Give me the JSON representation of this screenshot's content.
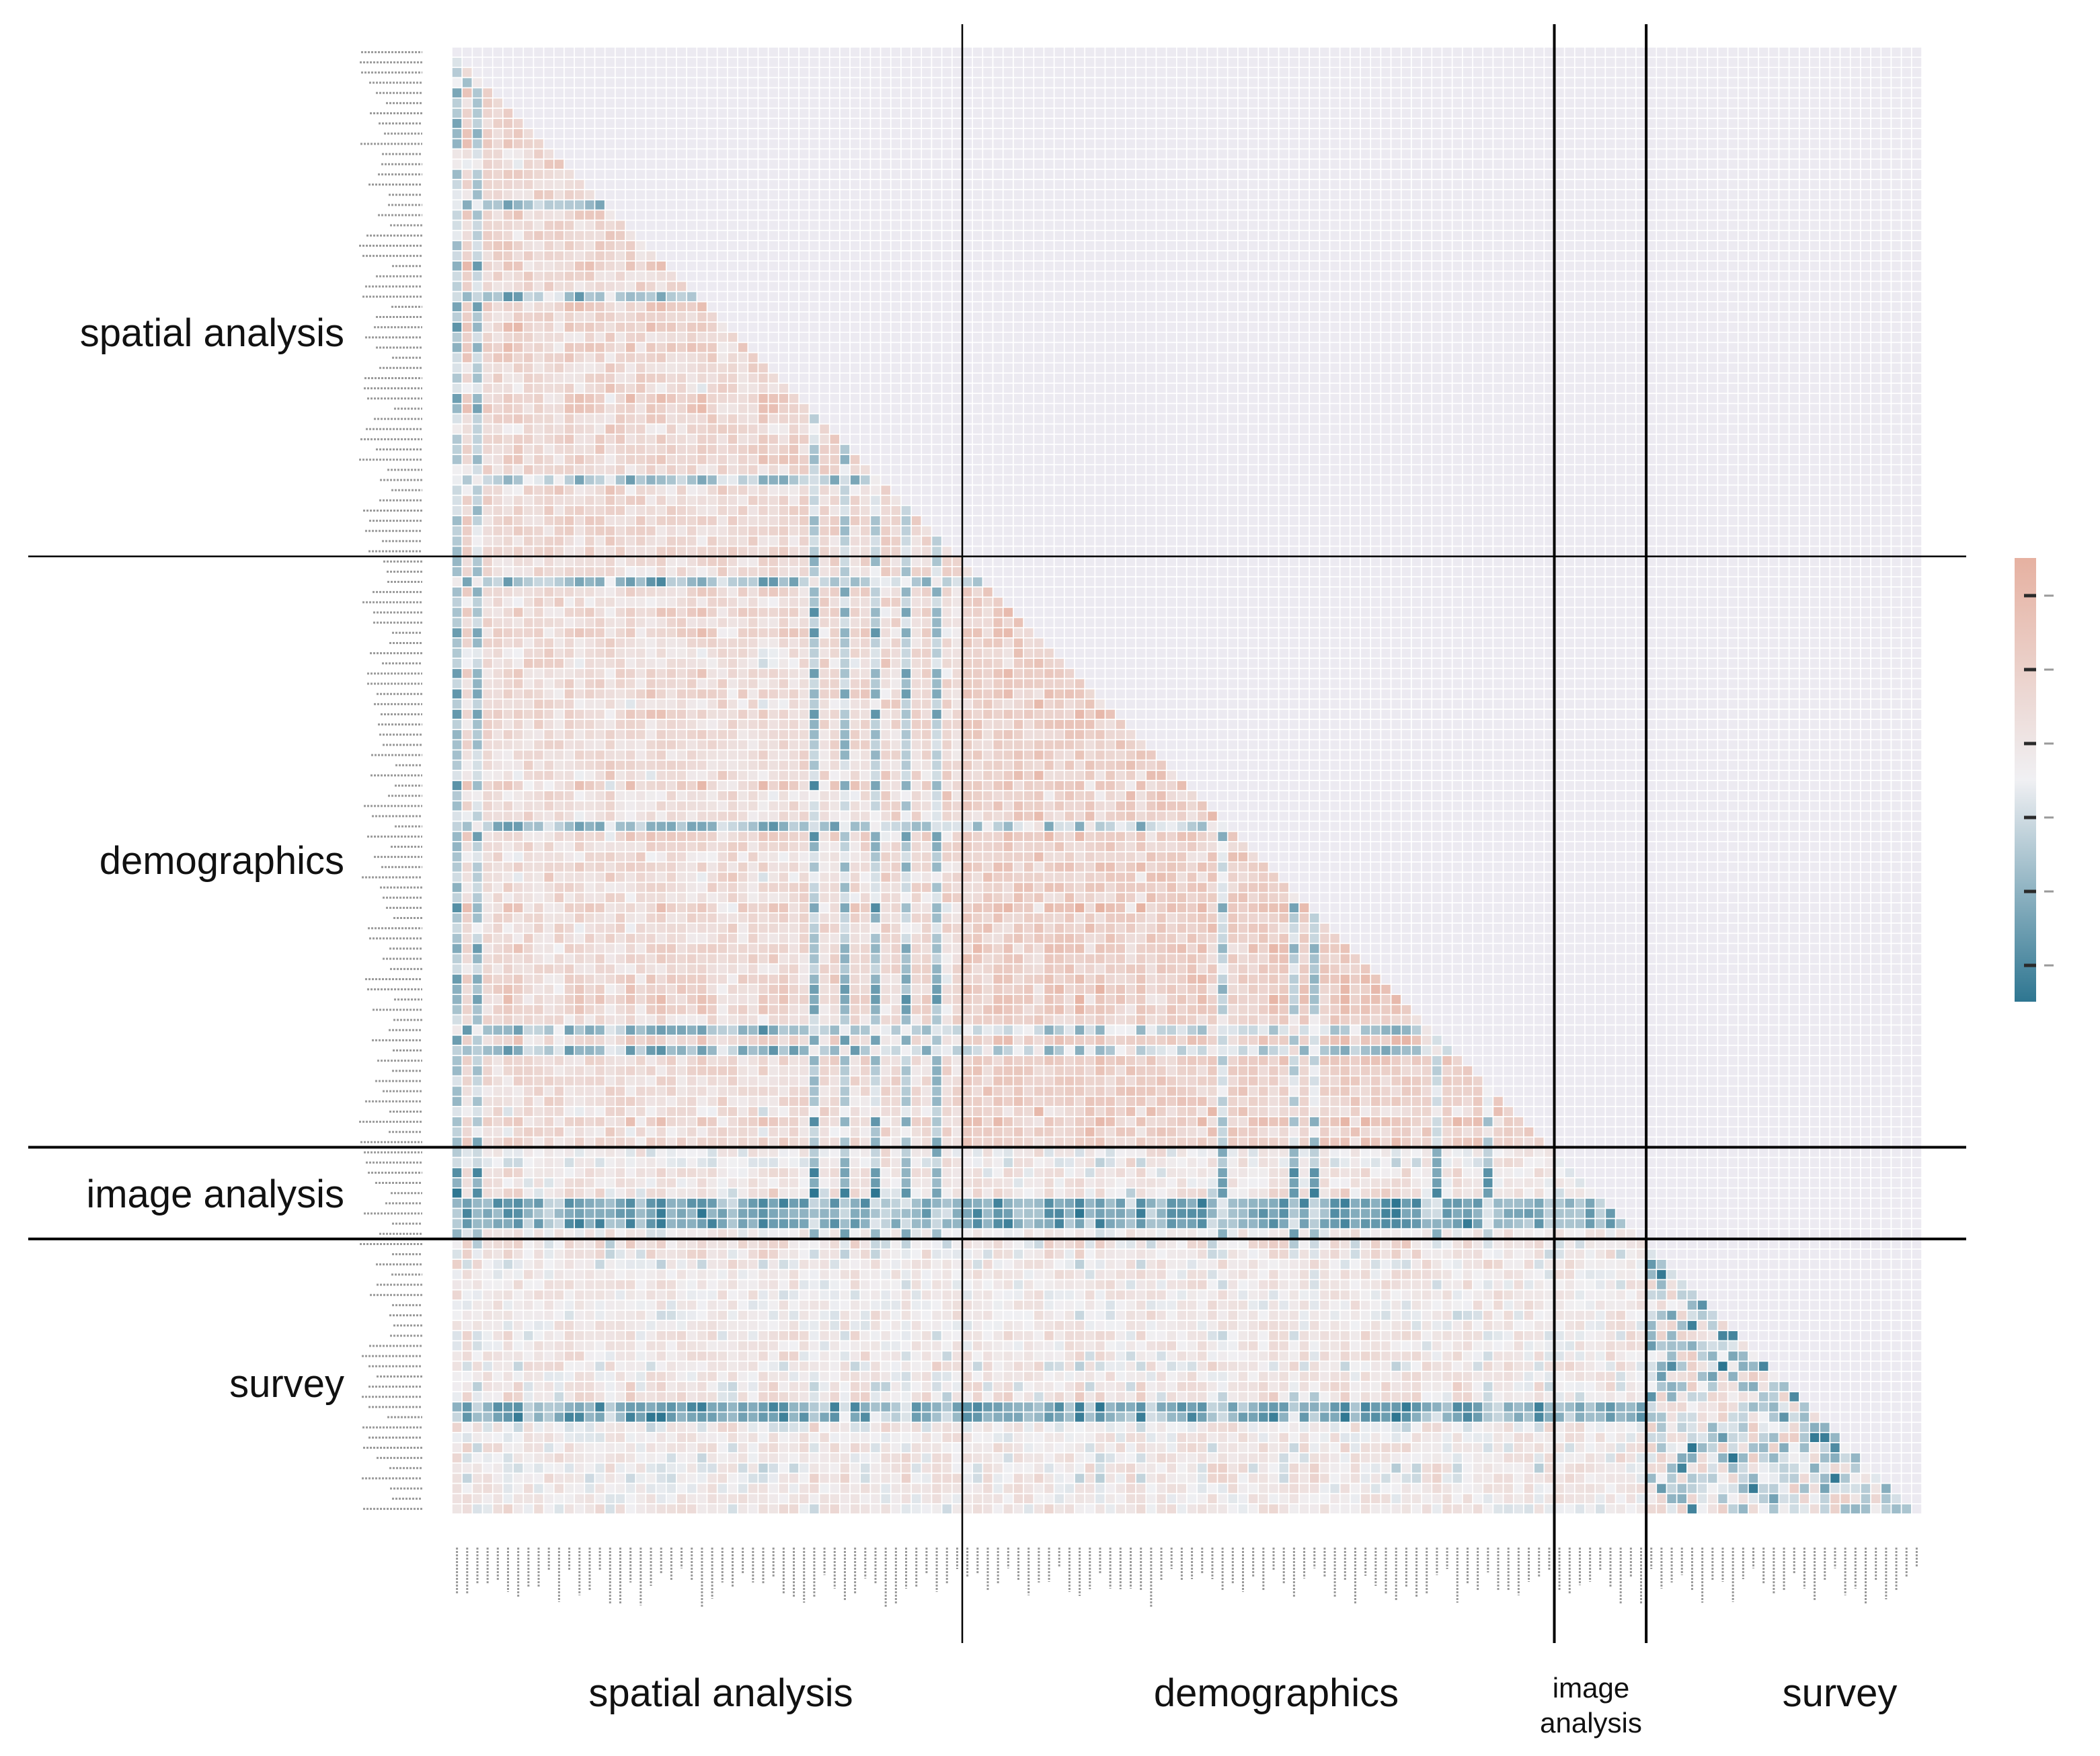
{
  "chart_data": {
    "type": "heatmap",
    "title": "",
    "shape": "lower-triangle correlation matrix",
    "groups": [
      {
        "name": "spatial analysis",
        "count": 50
      },
      {
        "name": "demographics",
        "count": 58
      },
      {
        "name": "image analysis",
        "count": 9
      },
      {
        "name": "survey",
        "count": 27
      }
    ],
    "row_group_labels": [
      "spatial analysis",
      "demographics",
      "image analysis",
      "survey"
    ],
    "col_group_labels": [
      "spatial analysis",
      "demographics",
      "image\nanalysis",
      "survey"
    ],
    "tick_labels": "variable names (illegible at this resolution)",
    "colorbar": {
      "colors": [
        "#2e7691",
        "#f0f0f3",
        "#e6b1a1"
      ],
      "range": [
        -1,
        1
      ],
      "tick_count": 6
    },
    "background_color": "#eceaf1",
    "cell_gap_color": "#ffffff",
    "divider_color": "#000000"
  }
}
